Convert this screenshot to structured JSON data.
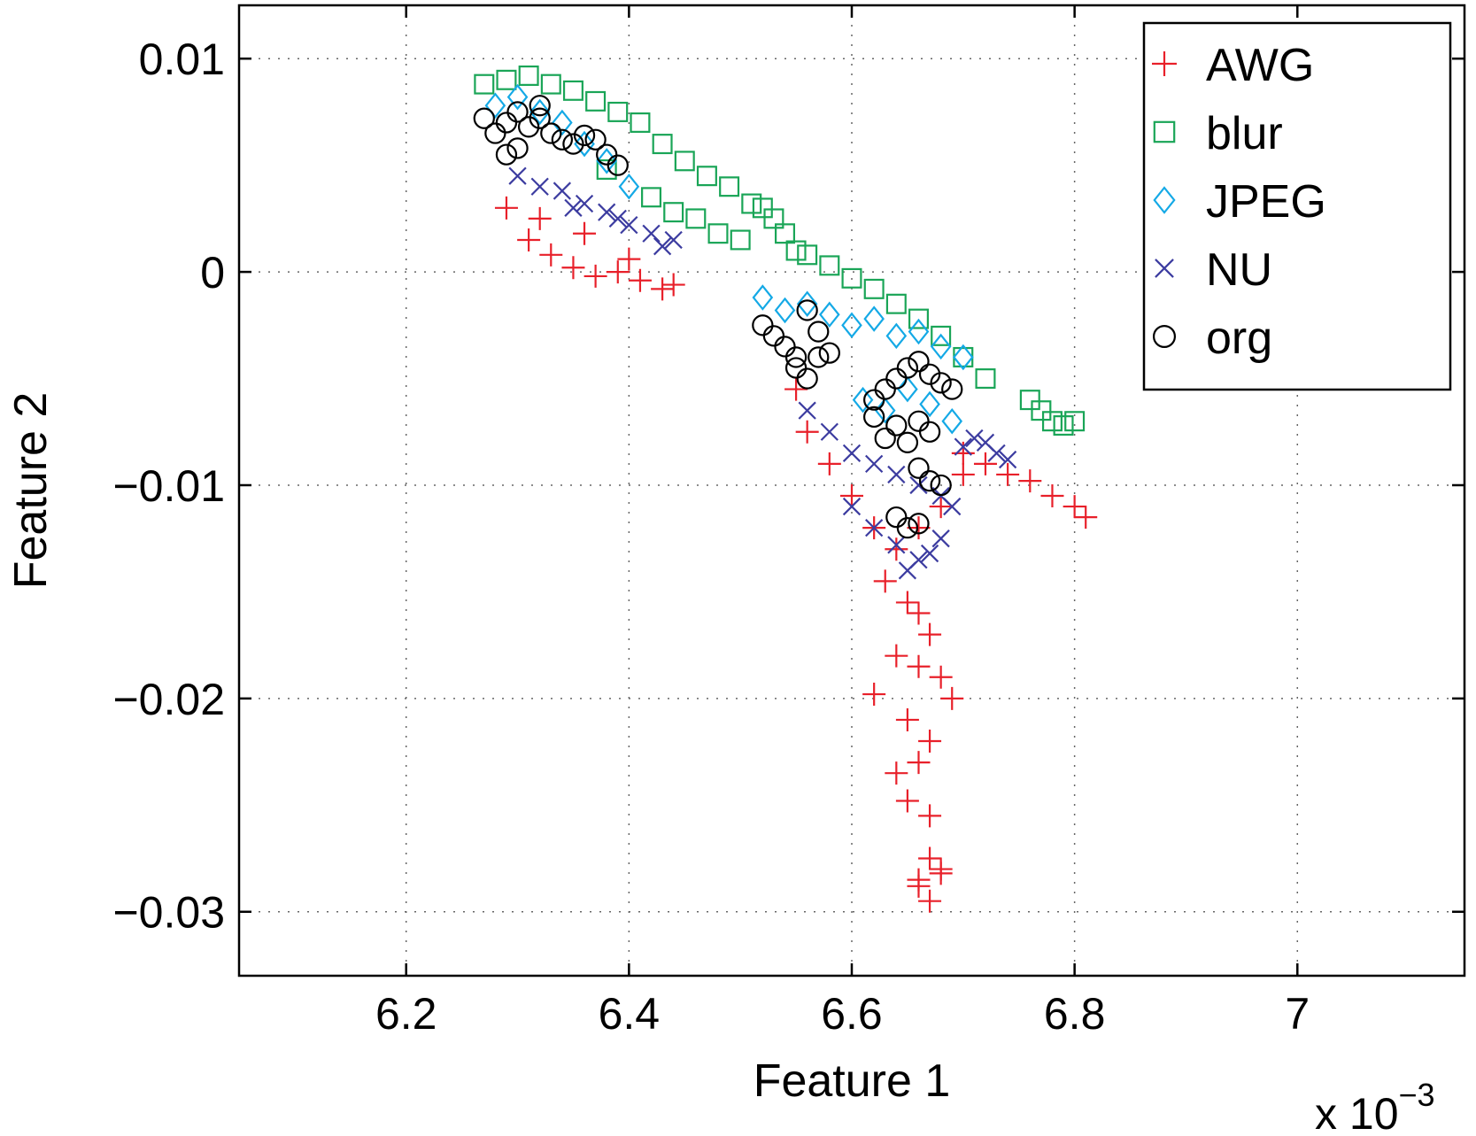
{
  "chart_data": {
    "type": "scatter",
    "xlabel": "Feature 1",
    "ylabel": "Feature 2",
    "x_multiplier": "x 10",
    "x_multiplier_exponent": "−3",
    "xlim": [
      6.05,
      7.15
    ],
    "ylim": [
      -0.033,
      0.0125
    ],
    "grid": true,
    "legend_position": "top-right",
    "x_ticks": [
      {
        "value": 6.2,
        "label": "6.2"
      },
      {
        "value": 6.4,
        "label": "6.4"
      },
      {
        "value": 6.6,
        "label": "6.6"
      },
      {
        "value": 6.8,
        "label": "6.8"
      },
      {
        "value": 7.0,
        "label": "7"
      }
    ],
    "y_ticks": [
      {
        "value": 0.01,
        "label": "0.01"
      },
      {
        "value": 0,
        "label": "0"
      },
      {
        "value": -0.01,
        "label": "−0.01"
      },
      {
        "value": -0.02,
        "label": "−0.02"
      },
      {
        "value": -0.03,
        "label": "−0.03"
      }
    ],
    "series": [
      {
        "name": "AWG",
        "marker": "plus",
        "color": "#e8202a",
        "x": [
          6.29,
          6.31,
          6.33,
          6.35,
          6.37,
          6.39,
          6.41,
          6.43,
          6.44,
          6.32,
          6.36,
          6.4,
          6.55,
          6.56,
          6.58,
          6.6,
          6.62,
          6.64,
          6.66,
          6.68,
          6.7,
          6.63,
          6.65,
          6.66,
          6.67,
          6.64,
          6.66,
          6.68,
          6.62,
          6.65,
          6.67,
          6.69,
          6.64,
          6.66,
          6.65,
          6.67,
          6.66,
          6.68,
          6.67,
          6.66,
          6.67,
          6.68,
          6.7,
          6.72,
          6.74,
          6.76,
          6.78,
          6.8,
          6.81
        ],
        "y": [
          0.003,
          0.0015,
          0.0008,
          0.0002,
          -0.0002,
          0.0,
          -0.0004,
          -0.0008,
          -0.0006,
          0.0025,
          0.0018,
          0.0006,
          -0.0055,
          -0.0075,
          -0.009,
          -0.0105,
          -0.012,
          -0.013,
          -0.012,
          -0.011,
          -0.0095,
          -0.0145,
          -0.0155,
          -0.016,
          -0.017,
          -0.018,
          -0.0185,
          -0.019,
          -0.0198,
          -0.021,
          -0.022,
          -0.02,
          -0.0235,
          -0.023,
          -0.0248,
          -0.0255,
          -0.0285,
          -0.028,
          -0.0295,
          -0.0288,
          -0.0275,
          -0.0282,
          -0.0085,
          -0.009,
          -0.0095,
          -0.0098,
          -0.0105,
          -0.011,
          -0.0115
        ]
      },
      {
        "name": "blur",
        "marker": "square",
        "color": "#1aa557",
        "x": [
          6.27,
          6.29,
          6.31,
          6.33,
          6.35,
          6.37,
          6.39,
          6.41,
          6.43,
          6.45,
          6.47,
          6.49,
          6.51,
          6.42,
          6.46,
          6.5,
          6.52,
          6.53,
          6.54,
          6.55,
          6.56,
          6.58,
          6.6,
          6.62,
          6.64,
          6.66,
          6.68,
          6.7,
          6.72,
          6.76,
          6.77,
          6.78,
          6.79,
          6.8,
          6.38,
          6.44,
          6.48
        ],
        "y": [
          0.0088,
          0.009,
          0.0092,
          0.0088,
          0.0085,
          0.008,
          0.0075,
          0.007,
          0.006,
          0.0052,
          0.0045,
          0.004,
          0.0032,
          0.0035,
          0.0025,
          0.0015,
          0.003,
          0.0025,
          0.0018,
          0.001,
          0.0008,
          0.0003,
          -0.0003,
          -0.0008,
          -0.0015,
          -0.0022,
          -0.003,
          -0.004,
          -0.005,
          -0.006,
          -0.0065,
          -0.007,
          -0.0072,
          -0.007,
          0.0048,
          0.0028,
          0.0018
        ]
      },
      {
        "name": "JPEG",
        "marker": "diamond",
        "color": "#14a9e6",
        "x": [
          6.28,
          6.3,
          6.32,
          6.34,
          6.36,
          6.38,
          6.4,
          6.52,
          6.54,
          6.56,
          6.58,
          6.6,
          6.62,
          6.64,
          6.66,
          6.68,
          6.7,
          6.61,
          6.63,
          6.65,
          6.67,
          6.69
        ],
        "y": [
          0.0078,
          0.0082,
          0.0075,
          0.007,
          0.006,
          0.0052,
          0.004,
          -0.0012,
          -0.0018,
          -0.0015,
          -0.002,
          -0.0025,
          -0.0022,
          -0.003,
          -0.0028,
          -0.0035,
          -0.004,
          -0.006,
          -0.0065,
          -0.0055,
          -0.0062,
          -0.007
        ]
      },
      {
        "name": "NU",
        "marker": "x",
        "color": "#3c3ca0",
        "x": [
          6.3,
          6.32,
          6.34,
          6.36,
          6.38,
          6.4,
          6.42,
          6.44,
          6.35,
          6.39,
          6.43,
          6.56,
          6.58,
          6.6,
          6.62,
          6.64,
          6.66,
          6.68,
          6.7,
          6.71,
          6.72,
          6.73,
          6.74,
          6.6,
          6.62,
          6.64,
          6.66,
          6.68,
          6.69,
          6.65,
          6.67
        ],
        "y": [
          0.0045,
          0.004,
          0.0038,
          0.0032,
          0.0028,
          0.0022,
          0.0018,
          0.0015,
          0.003,
          0.0025,
          0.0012,
          -0.0065,
          -0.0075,
          -0.0085,
          -0.009,
          -0.0095,
          -0.01,
          -0.0105,
          -0.0082,
          -0.0078,
          -0.008,
          -0.0085,
          -0.0088,
          -0.011,
          -0.012,
          -0.0128,
          -0.0135,
          -0.0125,
          -0.011,
          -0.014,
          -0.0132
        ]
      },
      {
        "name": "org",
        "marker": "circle",
        "color": "#000000",
        "x": [
          6.27,
          6.28,
          6.29,
          6.3,
          6.31,
          6.32,
          6.33,
          6.34,
          6.35,
          6.36,
          6.37,
          6.38,
          6.39,
          6.3,
          6.32,
          6.29,
          6.52,
          6.53,
          6.54,
          6.55,
          6.56,
          6.57,
          6.55,
          6.56,
          6.57,
          6.58,
          6.62,
          6.63,
          6.64,
          6.65,
          6.66,
          6.67,
          6.68,
          6.69,
          6.62,
          6.64,
          6.66,
          6.63,
          6.65,
          6.67,
          6.66,
          6.67,
          6.68,
          6.64,
          6.65,
          6.66
        ],
        "y": [
          0.0072,
          0.0065,
          0.007,
          0.0075,
          0.0068,
          0.0072,
          0.0065,
          0.0062,
          0.006,
          0.0064,
          0.0062,
          0.0055,
          0.005,
          0.0058,
          0.0078,
          0.0055,
          -0.0025,
          -0.003,
          -0.0035,
          -0.004,
          -0.0018,
          -0.0028,
          -0.0045,
          -0.005,
          -0.004,
          -0.0038,
          -0.006,
          -0.0055,
          -0.005,
          -0.0045,
          -0.0042,
          -0.0048,
          -0.0052,
          -0.0055,
          -0.0068,
          -0.0072,
          -0.007,
          -0.0078,
          -0.008,
          -0.0075,
          -0.0092,
          -0.0098,
          -0.01,
          -0.0115,
          -0.012,
          -0.0118
        ]
      }
    ]
  }
}
